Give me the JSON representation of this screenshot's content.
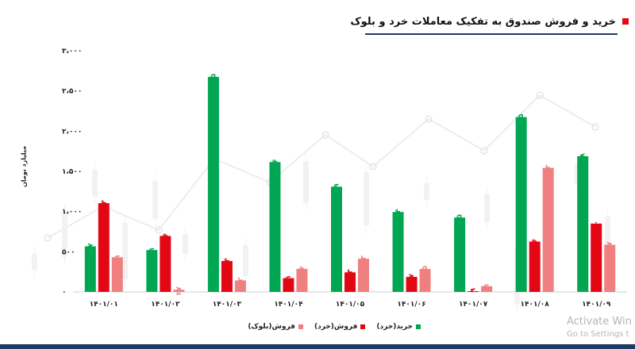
{
  "header": {
    "title": "خرید و فروش صندوق به تفکیک معاملات خرد و بلوک"
  },
  "chart_data": {
    "type": "bar",
    "ylabel": "میلیارد تومان",
    "ylim": [
      0,
      3000
    ],
    "yticks": [
      0,
      500,
      1000,
      1500,
      2000,
      2500,
      3000
    ],
    "ytick_labels": [
      "۰",
      "۵۰۰",
      "۱،۰۰۰",
      "۱،۵۰۰",
      "۲،۰۰۰",
      "۲،۵۰۰",
      "۳،۰۰۰"
    ],
    "grid": false,
    "legend_position": "bottom",
    "categories": [
      "۱۴۰۱/۰۱",
      "۱۴۰۱/۰۲",
      "۱۴۰۱/۰۳",
      "۱۴۰۱/۰۴",
      "۱۴۰۱/۰۵",
      "۱۴۰۱/۰۶",
      "۱۴۰۱/۰۷",
      "۱۴۰۱/۰۸",
      "۱۴۰۱/۰۹"
    ],
    "series": [
      {
        "name": "خرید(خرد)",
        "color": "#00a651",
        "values": [
          567,
          521,
          2675,
          1616,
          1309,
          994,
          925,
          2175,
          1688
        ],
        "labels": [
          "۵۶۷",
          "۵۲۱",
          "۲،۶۷۵",
          "۱،۶۱۶",
          "۱،۳۰۹",
          "۹۹۴",
          "۹۲۵",
          "۲،۱۷۵",
          "۱،۶۸۸"
        ]
      },
      {
        "name": "فروش(خرد)",
        "color": "#e30613",
        "values": [
          1104,
          696,
          384,
          171,
          243,
          187,
          9,
          626,
          850
        ],
        "labels": [
          "۱،۱۰۴",
          "۶۹۶",
          "۳۸۴",
          "۱۷۱",
          "۲۴۳",
          "۱۸۷",
          "۹",
          "۶۲۶",
          "۸۵۰"
        ]
      },
      {
        "name": "فروش(بلوک)",
        "color": "#f08080",
        "values": [
          431,
          27,
          142,
          286,
          413,
          285,
          71,
          1543,
          587
        ],
        "labels": [
          "۴۳۱",
          "۲۷",
          "۱۴۲",
          "۲۸۶",
          "۴۱۳",
          "۲۸۵",
          "۷۱",
          "۱،۵۴۳",
          "۵۸۷"
        ]
      }
    ]
  },
  "watermark": {
    "line1": "Activate Win",
    "line2": "Go to Settings t"
  }
}
